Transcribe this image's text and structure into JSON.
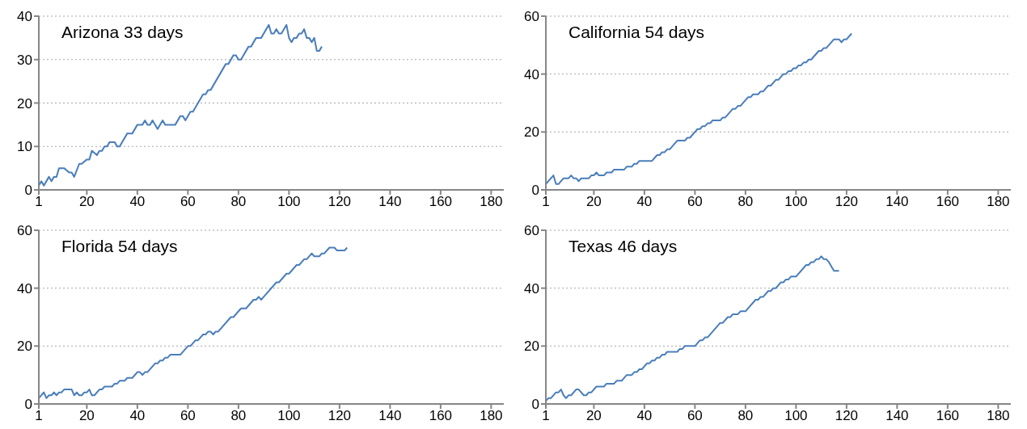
{
  "chart_data": [
    {
      "type": "line",
      "title": "Arizona 33 days",
      "color": "#4a7ebb",
      "grid": "y",
      "xlim": [
        1,
        185
      ],
      "xticks": [
        1,
        20,
        40,
        60,
        80,
        100,
        120,
        140,
        160,
        180
      ],
      "ylim": [
        0,
        40
      ],
      "yticks": [
        0,
        10,
        20,
        30,
        40
      ],
      "x": [
        1,
        2,
        3,
        5,
        6,
        7,
        8,
        9,
        11,
        13,
        14,
        15,
        17,
        18,
        20,
        21,
        22,
        24,
        25,
        26,
        27,
        28,
        29,
        31,
        32,
        33,
        36,
        38,
        40,
        42,
        43,
        44,
        45,
        46,
        48,
        50,
        51,
        55,
        57,
        58,
        59,
        61,
        62,
        66,
        67,
        68,
        69,
        75,
        76,
        78,
        79,
        80,
        81,
        84,
        85,
        87,
        89,
        92,
        93,
        94,
        95,
        96,
        97,
        99,
        100,
        101,
        102,
        103,
        104,
        105,
        106,
        107,
        108,
        109,
        110,
        111,
        112,
        113
      ],
      "values": [
        1,
        2,
        1,
        3,
        2,
        3,
        3,
        5,
        5,
        4,
        4,
        3,
        6,
        6,
        7,
        7,
        9,
        8,
        9,
        9,
        10,
        10,
        11,
        11,
        10,
        10,
        13,
        13,
        15,
        15,
        16,
        15,
        15,
        16,
        14,
        16,
        15,
        15,
        17,
        17,
        16,
        18,
        18,
        22,
        22,
        23,
        23,
        29,
        29,
        31,
        31,
        30,
        30,
        33,
        33,
        35,
        35,
        38,
        36,
        36,
        37,
        36,
        36,
        38,
        35,
        34,
        35,
        35,
        36,
        36,
        37,
        35,
        35,
        34,
        35,
        32,
        32,
        33
      ]
    },
    {
      "type": "line",
      "title": "California 54 days",
      "color": "#4a7ebb",
      "grid": "y",
      "xlim": [
        1,
        185
      ],
      "xticks": [
        1,
        20,
        40,
        60,
        80,
        100,
        120,
        140,
        160,
        180
      ],
      "ylim": [
        0,
        60
      ],
      "yticks": [
        0,
        20,
        40,
        60
      ],
      "x": [
        1,
        4,
        5,
        6,
        8,
        10,
        11,
        12,
        13,
        14,
        15,
        18,
        19,
        20,
        21,
        22,
        24,
        25,
        27,
        28,
        32,
        33,
        35,
        36,
        37,
        38,
        43,
        45,
        46,
        47,
        48,
        49,
        50,
        53,
        56,
        57,
        58,
        61,
        62,
        63,
        64,
        65,
        66,
        67,
        70,
        71,
        72,
        75,
        76,
        77,
        78,
        81,
        82,
        83,
        85,
        86,
        87,
        89,
        90,
        92,
        93,
        95,
        96,
        97,
        98,
        99,
        100,
        101,
        102,
        103,
        104,
        105,
        106,
        109,
        110,
        111,
        112,
        115,
        117,
        118,
        119,
        120,
        122
      ],
      "values": [
        2,
        5,
        2,
        2,
        4,
        4,
        5,
        4,
        4,
        3,
        4,
        4,
        5,
        5,
        6,
        5,
        5,
        6,
        6,
        7,
        7,
        8,
        8,
        9,
        9,
        10,
        10,
        12,
        12,
        13,
        13,
        14,
        14,
        17,
        17,
        18,
        18,
        21,
        21,
        22,
        22,
        23,
        23,
        24,
        24,
        25,
        25,
        28,
        28,
        29,
        29,
        32,
        32,
        33,
        33,
        34,
        34,
        36,
        36,
        38,
        38,
        40,
        40,
        41,
        41,
        42,
        42,
        43,
        43,
        44,
        44,
        45,
        45,
        48,
        48,
        49,
        49,
        52,
        52,
        51,
        52,
        52,
        54
      ]
    },
    {
      "type": "line",
      "title": "Florida 54 days",
      "color": "#4a7ebb",
      "grid": "y",
      "xlim": [
        1,
        185
      ],
      "xticks": [
        1,
        20,
        40,
        60,
        80,
        100,
        120,
        140,
        160,
        180
      ],
      "ylim": [
        0,
        60
      ],
      "yticks": [
        0,
        20,
        40,
        60
      ],
      "x": [
        1,
        3,
        4,
        5,
        6,
        7,
        8,
        9,
        10,
        11,
        14,
        15,
        16,
        17,
        18,
        19,
        20,
        21,
        22,
        23,
        25,
        26,
        27,
        30,
        31,
        32,
        33,
        35,
        36,
        38,
        40,
        41,
        42,
        43,
        44,
        47,
        48,
        49,
        50,
        51,
        52,
        53,
        57,
        60,
        61,
        63,
        64,
        66,
        67,
        68,
        69,
        70,
        71,
        72,
        77,
        78,
        81,
        83,
        86,
        87,
        88,
        89,
        90,
        95,
        96,
        99,
        100,
        103,
        104,
        106,
        107,
        109,
        110,
        112,
        113,
        114,
        116,
        118,
        119,
        122,
        123
      ],
      "values": [
        2,
        4,
        2,
        3,
        3,
        4,
        3,
        4,
        4,
        5,
        5,
        3,
        4,
        3,
        3,
        4,
        4,
        5,
        3,
        3,
        5,
        5,
        6,
        6,
        7,
        7,
        8,
        8,
        9,
        9,
        11,
        11,
        10,
        11,
        11,
        14,
        14,
        15,
        15,
        16,
        16,
        17,
        17,
        20,
        20,
        22,
        22,
        24,
        24,
        25,
        25,
        24,
        25,
        25,
        30,
        30,
        33,
        33,
        36,
        36,
        37,
        36,
        37,
        42,
        42,
        45,
        45,
        48,
        48,
        50,
        50,
        52,
        51,
        51,
        52,
        52,
        54,
        54,
        53,
        53,
        54
      ]
    },
    {
      "type": "line",
      "title": "Texas 46 days",
      "color": "#4a7ebb",
      "grid": "y",
      "xlim": [
        1,
        185
      ],
      "xticks": [
        1,
        20,
        40,
        60,
        80,
        100,
        120,
        140,
        160,
        180
      ],
      "ylim": [
        0,
        60
      ],
      "yticks": [
        0,
        20,
        40,
        60
      ],
      "x": [
        1,
        2,
        3,
        5,
        6,
        7,
        8,
        9,
        10,
        11,
        13,
        14,
        16,
        17,
        18,
        19,
        21,
        24,
        25,
        28,
        29,
        31,
        33,
        35,
        36,
        37,
        38,
        39,
        41,
        42,
        43,
        44,
        45,
        46,
        47,
        48,
        49,
        53,
        54,
        55,
        56,
        60,
        62,
        63,
        64,
        65,
        70,
        71,
        73,
        74,
        75,
        77,
        78,
        80,
        84,
        85,
        86,
        87,
        89,
        90,
        91,
        92,
        94,
        95,
        96,
        97,
        98,
        100,
        104,
        105,
        106,
        107,
        108,
        109,
        110,
        111,
        112,
        113,
        115,
        117
      ],
      "values": [
        1,
        2,
        2,
        4,
        4,
        5,
        3,
        2,
        3,
        3,
        5,
        5,
        3,
        3,
        4,
        4,
        6,
        6,
        7,
        7,
        8,
        8,
        10,
        10,
        11,
        11,
        12,
        12,
        14,
        14,
        15,
        15,
        16,
        16,
        17,
        17,
        18,
        18,
        19,
        19,
        20,
        20,
        22,
        22,
        23,
        23,
        28,
        28,
        30,
        30,
        31,
        31,
        32,
        32,
        36,
        36,
        37,
        37,
        39,
        39,
        40,
        40,
        42,
        42,
        43,
        43,
        44,
        44,
        48,
        48,
        49,
        49,
        50,
        50,
        51,
        50,
        50,
        49,
        46,
        46
      ]
    }
  ]
}
